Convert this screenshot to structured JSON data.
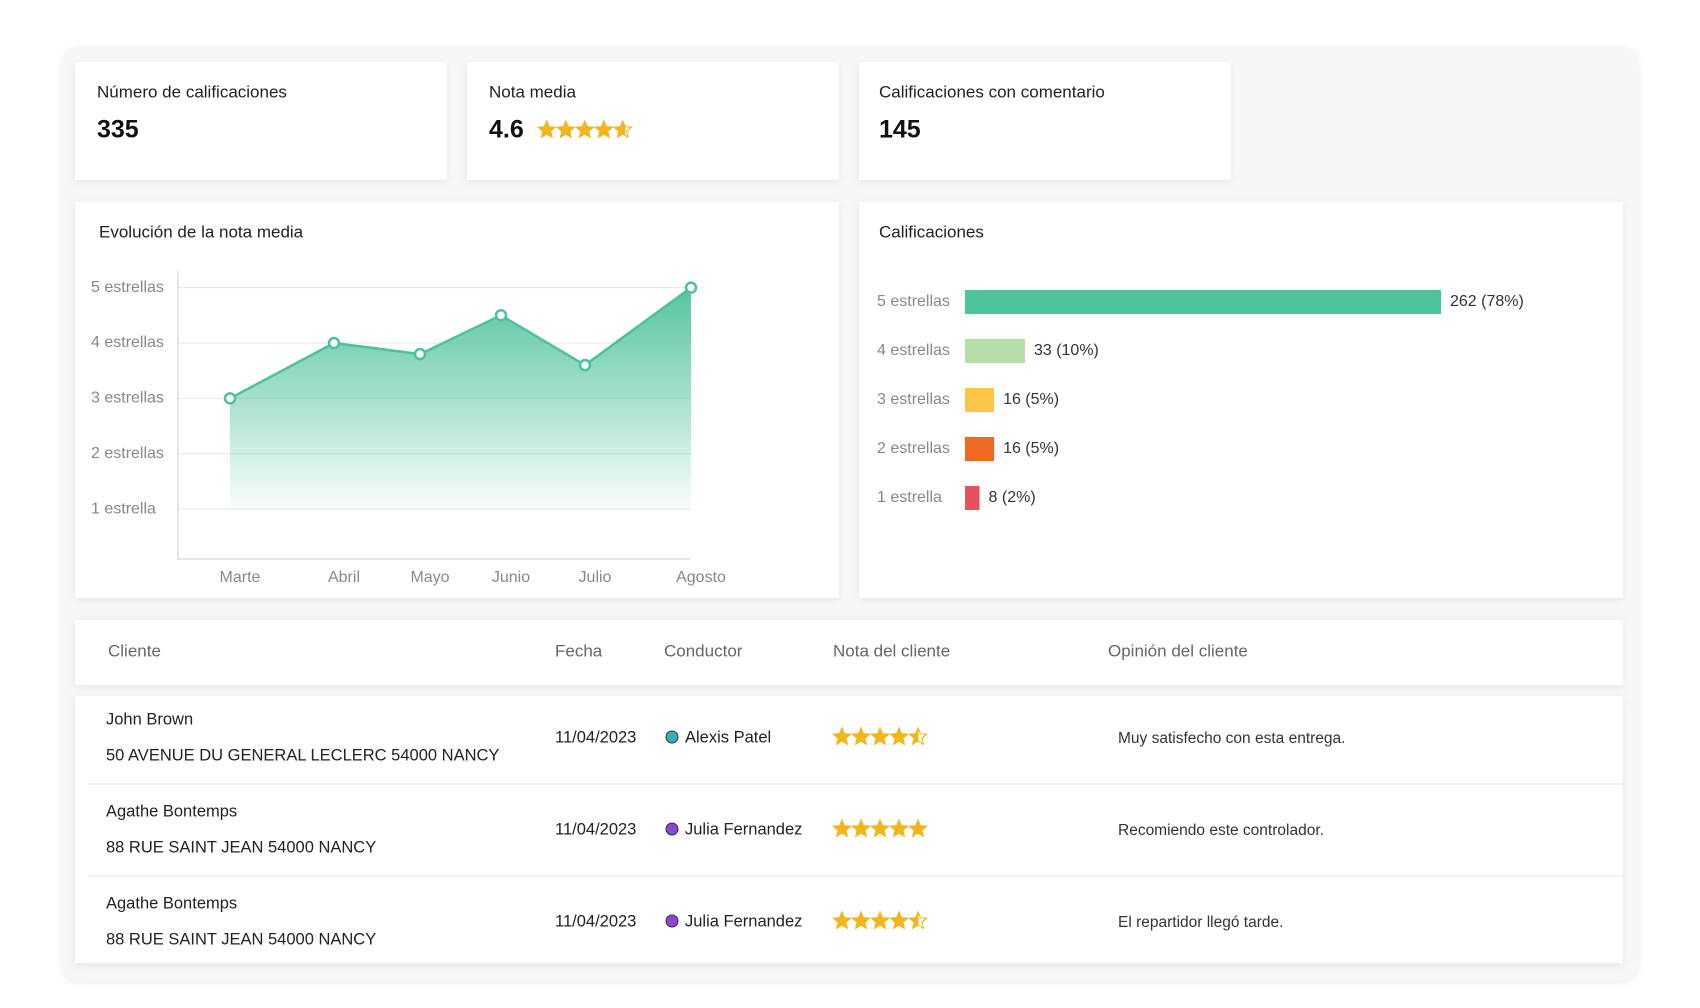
{
  "kpis": [
    {
      "label": "Número de calificaciones",
      "value": 335
    },
    {
      "label": "Nota media",
      "value": 4.6
    },
    {
      "label": "Calificaciones con comentario",
      "value": 145
    }
  ],
  "chart_data": [
    {
      "type": "line",
      "title": "Evolución de la nota media",
      "categories": [
        "Marte",
        "Abril",
        "Mayo",
        "Junio",
        "Julio",
        "Agosto"
      ],
      "series": [
        {
          "color": "#4cc29a",
          "values": [
            3.0,
            4.0,
            3.8,
            4.5,
            3.6,
            5.0
          ]
        }
      ],
      "ylim": [
        0.1,
        5.3
      ],
      "yticks": [
        {
          "value": 1,
          "label": "1 estrella"
        },
        {
          "value": 2,
          "label": "2 estrellas"
        },
        {
          "value": 3,
          "label": "3 estrellas"
        },
        {
          "value": 4,
          "label": "4 estrellas"
        },
        {
          "value": 5,
          "label": "5 estrellas"
        }
      ],
      "grid": true
    },
    {
      "type": "hbar",
      "title": "Calificaciones",
      "categories": [
        "5 estrellas",
        "4 estrellas",
        "3 estrellas",
        "2 estrellas",
        "1 estrella"
      ],
      "values": [
        262,
        33,
        16,
        16,
        8
      ],
      "value_labels": [
        "262 (78%)",
        "33 (10%)",
        "16 (5%)",
        "16 (5%)",
        "8 (2%)"
      ],
      "colors": [
        "#4cc49c",
        "#b5dea8",
        "#fbc547",
        "#ee6a24",
        "#e8505b"
      ]
    }
  ],
  "table": {
    "columns": [
      "Cliente",
      "Fecha",
      "Conductor",
      "Nota del cliente",
      "Opinión del cliente"
    ],
    "rows": [
      {
        "client": "John Brown",
        "address": "50 AVENUE DU GENERAL LECLERC 54000 NANCY",
        "date": "11/04/2023",
        "driver": "Alexis Patel",
        "driver_color": "#2bb5b8",
        "rating": 4.5,
        "opinion": "Muy satisfecho con esta entrega."
      },
      {
        "client": "Agathe Bontemps",
        "address": "88 RUE SAINT JEAN 54000 NANCY",
        "date": "11/04/2023",
        "driver": "Julia Fernandez",
        "driver_color": "#8e44d6",
        "rating": 5,
        "opinion": "Recomiendo este controlador."
      },
      {
        "client": "Agathe Bontemps",
        "address": "88 RUE SAINT JEAN 54000 NANCY",
        "date": "11/04/2023",
        "driver": "Julia Fernandez",
        "driver_color": "#8e44d6",
        "rating": 4.5,
        "opinion": "El repartidor llegó tarde."
      }
    ]
  }
}
